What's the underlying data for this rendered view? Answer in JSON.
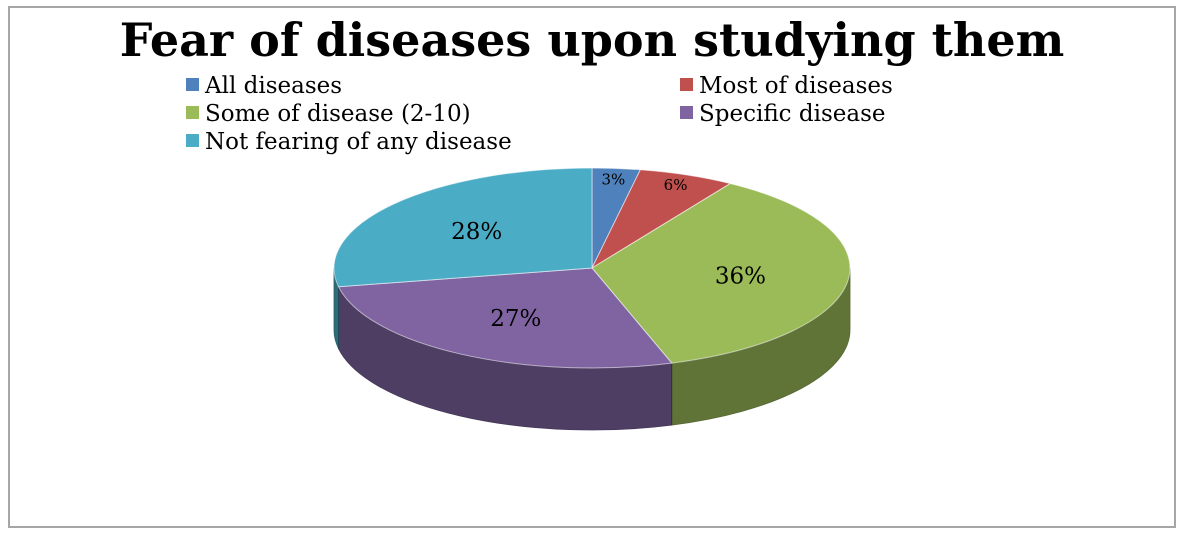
{
  "chart_data": {
    "type": "pie",
    "title": "Fear of diseases upon studying them",
    "categories": [
      "All diseases",
      "Most of diseases",
      "Some of disease (2-10)",
      "Specific disease",
      "Not fearing of any disease"
    ],
    "values": [
      3,
      6,
      36,
      27,
      28
    ],
    "labels": [
      "3%",
      "6%",
      "36%",
      "27%",
      "28%"
    ],
    "colors": [
      "#4f81bd",
      "#c0504d",
      "#9bbb59",
      "#8064a2",
      "#4bacc6"
    ],
    "legend_position": "top",
    "style": "3d"
  }
}
